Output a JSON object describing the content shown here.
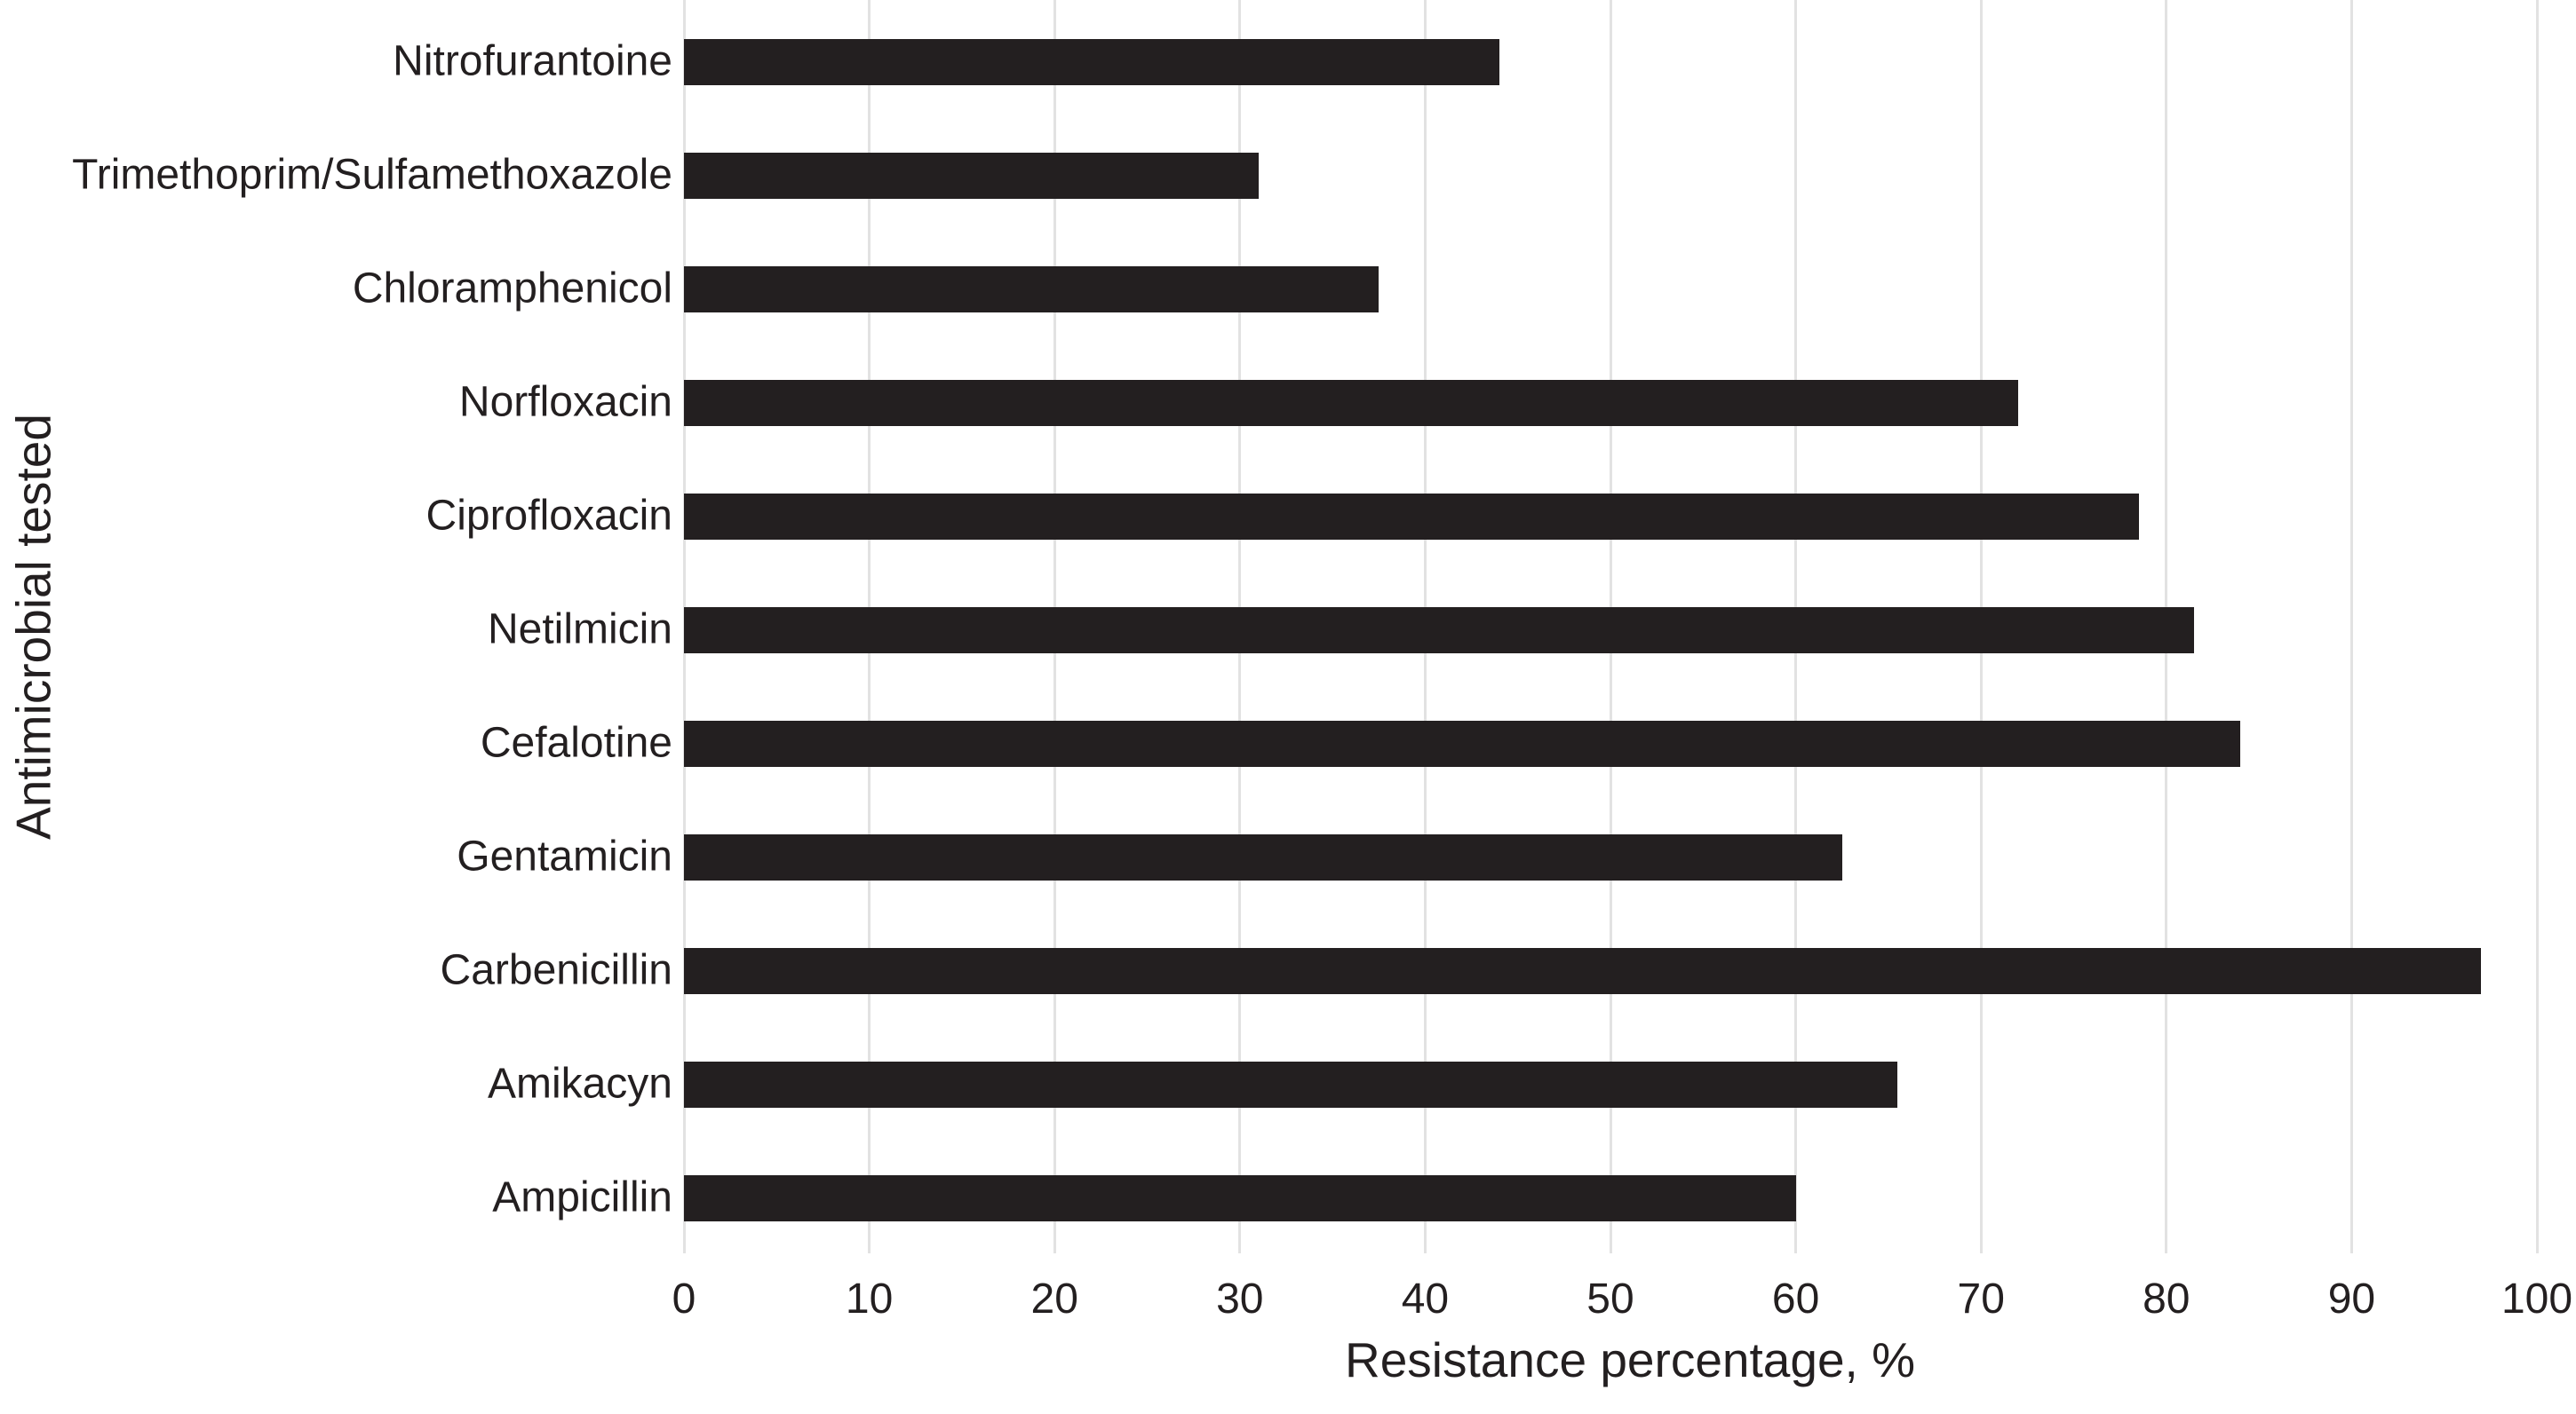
{
  "chart_data": {
    "type": "bar",
    "orientation": "horizontal",
    "title": "",
    "xlabel": "Resistance percentage, %",
    "ylabel": "Antimicrobial tested",
    "xlim": [
      0,
      100
    ],
    "xticks": [
      0,
      10,
      20,
      30,
      40,
      50,
      60,
      70,
      80,
      90,
      100
    ],
    "grid": "vertical-gridlines",
    "legend": "none",
    "categories_top_to_bottom": [
      "Nitrofurantoine",
      "Trimethoprim/Sulfamethoxazole",
      "Chloramphenicol",
      "Norfloxacin",
      "Ciprofloxacin",
      "Netilmicin",
      "Cefalotine",
      "Gentamicin",
      "Carbenicillin",
      "Amikacyn",
      "Ampicillin"
    ],
    "values": [
      44,
      31,
      37.5,
      72,
      78.5,
      81.5,
      84,
      62.5,
      97,
      65.5,
      60
    ],
    "colors": {
      "bar": "#231f20",
      "gridline": "#e2e2e2",
      "text": "#231f20",
      "background": "#ffffff"
    }
  }
}
